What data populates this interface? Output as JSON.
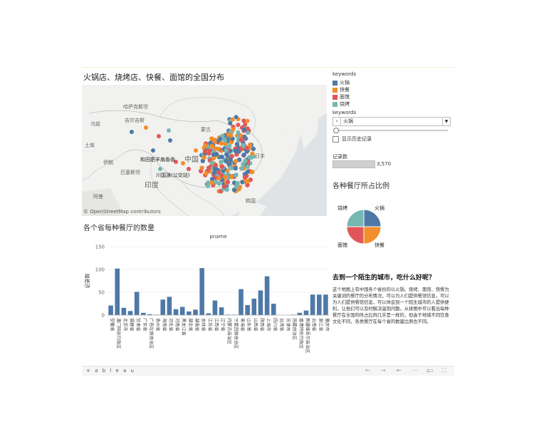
{
  "map": {
    "title": "火锅店、烧烤店、快餐、面馆的全国分布",
    "attribution": "© OpenStreetMap contributors",
    "labels": {
      "kazakhstan": "哈萨克斯坦",
      "kyrgyz": "吉尔吉斯",
      "mongolia": "蒙古",
      "china": "中国",
      "japan": "日本",
      "pakistan": "巴基斯坦",
      "iran": "伊朗",
      "india": "印度",
      "aman": "阿曼",
      "korea": "韩国",
      "uzbek": "乌兹",
      "turk": "土库"
    },
    "city_labels": {
      "hotian": "和田肥羊扇香香",
      "chuan": "川国演(公交站)"
    }
  },
  "sidebar": {
    "legend_title": "keywords",
    "legend": [
      {
        "label": "火锅",
        "color": "#4e79a7"
      },
      {
        "label": "快餐",
        "color": "#f28e2b"
      },
      {
        "label": "面馆",
        "color": "#e15759"
      },
      {
        "label": "烧烤",
        "color": "#76b7b2"
      }
    ],
    "filter_title": "keywords",
    "filter_value": "火锅",
    "history_label": "显示历史记录",
    "count_title": "记录数",
    "count_value": "3,570"
  },
  "pie": {
    "title": "各种餐厅所占比例",
    "slices": [
      {
        "label": "火锅",
        "value": 25,
        "color": "#4e79a7"
      },
      {
        "label": "快餐",
        "value": 25,
        "color": "#f28e2b"
      },
      {
        "label": "面馆",
        "value": 25,
        "color": "#e15759"
      },
      {
        "label": "烧烤",
        "value": 25,
        "color": "#76b7b2"
      }
    ]
  },
  "story": {
    "title": "去到一个陌生的城市，吃什么好呢？",
    "text": "这个地图上有中国各个省份的以火锅、烧烤、面馆、快餐为关键词的餐厅的分布情况，可以为人们提供餐馆信息，可以为人们提供餐馆信息，可以体会到一个陌生城市的人提供便利，让他们可以及时解决温饱问题。从拼图中可以看出每种餐厅在全国的所占比例几乎是一样的，但由于地域不同饮食文化不同，各类餐厅在每个省的数量比例也不同。"
  },
  "chart_data": {
    "type": "bar",
    "title": "各个省每种餐厅的数量",
    "header": "pname",
    "ylabel": "记录数",
    "ylim": [
      0,
      150
    ],
    "yticks": [
      0,
      50,
      100,
      150
    ],
    "categories": [
      "安徽省",
      "澳门特别行政区",
      "北京市",
      "福建省",
      "甘肃省",
      "广东省",
      "广西壮族自治区",
      "贵州省",
      "海南省",
      "河北省",
      "河南省",
      "黑龙江省",
      "湖北省",
      "湖南省",
      "吉林省",
      "江苏省",
      "江西省",
      "辽宁省",
      "内蒙古自治区",
      "宁夏回族自治区",
      "青海省",
      "山东省",
      "山西省",
      "陕西省",
      "上海市",
      "四川省",
      "台湾省",
      "天津市",
      "西藏自治区",
      "香港特别行政区",
      "新疆维吾尔自治区",
      "云南省",
      "浙江省",
      "重庆市"
    ],
    "values": [
      21,
      102,
      16,
      9,
      51,
      5,
      2,
      1,
      34,
      40,
      13,
      18,
      8,
      12,
      103,
      4,
      32,
      17,
      1,
      1,
      57,
      22,
      36,
      54,
      85,
      25,
      0,
      0,
      1,
      5,
      10,
      45,
      45,
      45
    ]
  },
  "toolbar": {
    "logo": "+ a b l e a u",
    "undo": "←",
    "redo": "→",
    "revert": "⇤",
    "share": "⋯",
    "download": "⤓",
    "present": "▭",
    "fullscreen": "⛶"
  }
}
